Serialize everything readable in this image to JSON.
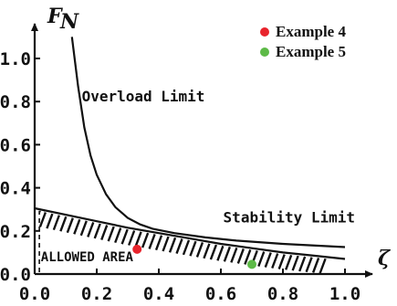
{
  "chart_data": {
    "type": "line",
    "title": "",
    "xlabel": "ζ",
    "ylabel": "F",
    "ylabel_subscript": "N",
    "xlim": [
      0,
      1.0
    ],
    "ylim": [
      0,
      1.1
    ],
    "x_ticks": [
      0.0,
      0.2,
      0.4,
      0.6,
      0.8,
      1.0
    ],
    "x_tick_labels": [
      "0.0",
      "0.2",
      "0.4",
      "0.6",
      "0.8",
      "1.0"
    ],
    "y_ticks": [
      0.0,
      0.2,
      0.4,
      0.6,
      0.8,
      1.0
    ],
    "y_tick_labels": [
      "0.0",
      "0.2",
      "0.4",
      "0.6",
      "0.8",
      "1.0"
    ],
    "grid": false,
    "legend_position": "top-right",
    "series": [
      {
        "label": "Overload Limit",
        "x": [
          0.12,
          0.14,
          0.16,
          0.18,
          0.2,
          0.23,
          0.26,
          0.3,
          0.34,
          0.38,
          0.45,
          0.55,
          0.65,
          0.8,
          1.0
        ],
        "y": [
          1.1,
          0.87,
          0.68,
          0.55,
          0.46,
          0.37,
          0.31,
          0.26,
          0.23,
          0.21,
          0.19,
          0.17,
          0.155,
          0.14,
          0.125
        ]
      },
      {
        "label": "Stability Limit",
        "x": [
          0.0,
          0.1,
          0.2,
          0.3,
          0.4,
          0.5,
          0.6,
          0.7,
          0.8,
          0.9,
          1.0
        ],
        "y": [
          0.305,
          0.275,
          0.245,
          0.215,
          0.19,
          0.165,
          0.14,
          0.12,
          0.1,
          0.085,
          0.07
        ]
      }
    ],
    "dashed_boundary": {
      "x": 0.015,
      "y_top": 0.29
    },
    "points": [
      {
        "name": "Example 4",
        "x": 0.33,
        "y": 0.115,
        "color": "#e8242c"
      },
      {
        "name": "Example 5",
        "x": 0.7,
        "y": 0.045,
        "color": "#5dba47"
      }
    ],
    "annotations": [
      {
        "text": "Overload Limit",
        "x": 0.35,
        "y": 0.8
      },
      {
        "text": "Stability Limit",
        "x": 0.82,
        "y": 0.24
      },
      {
        "text": "ALLOWED AREA",
        "x": 0.02,
        "y": 0.06
      }
    ]
  }
}
